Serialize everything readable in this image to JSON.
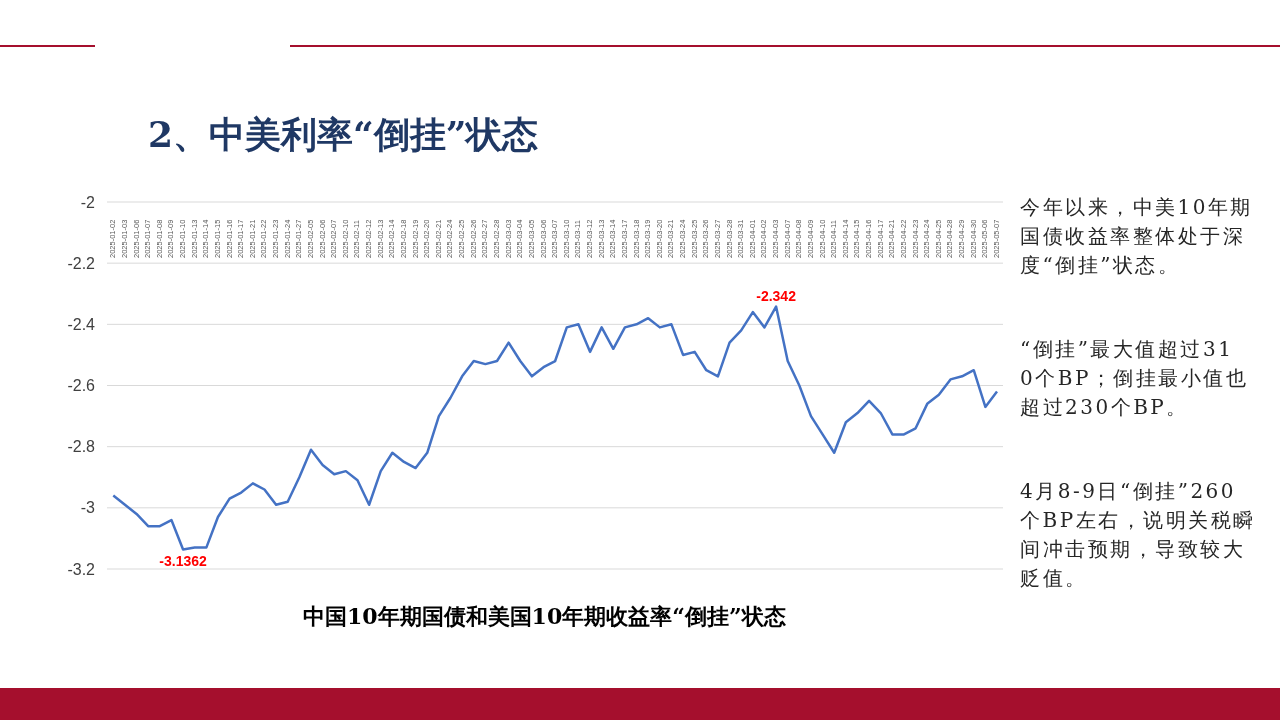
{
  "chart_data": {
    "type": "line",
    "title": "2、中美利率“倒挂”状态",
    "subtitle": "中国10年期国债和美国10年期收益率“倒挂”状态",
    "categories": [
      "2025-01-02",
      "2025-01-03",
      "2025-01-06",
      "2025-01-07",
      "2025-01-08",
      "2025-01-09",
      "2025-01-10",
      "2025-01-13",
      "2025-01-14",
      "2025-01-15",
      "2025-01-16",
      "2025-01-17",
      "2025-01-21",
      "2025-01-22",
      "2025-01-23",
      "2025-01-24",
      "2025-01-27",
      "2025-02-05",
      "2025-02-06",
      "2025-02-07",
      "2025-02-10",
      "2025-02-11",
      "2025-02-12",
      "2025-02-13",
      "2025-02-14",
      "2025-02-18",
      "2025-02-19",
      "2025-02-20",
      "2025-02-21",
      "2025-02-24",
      "2025-02-25",
      "2025-02-26",
      "2025-02-27",
      "2025-02-28",
      "2025-03-03",
      "2025-03-04",
      "2025-03-05",
      "2025-03-06",
      "2025-03-07",
      "2025-03-10",
      "2025-03-11",
      "2025-03-12",
      "2025-03-13",
      "2025-03-14",
      "2025-03-17",
      "2025-03-18",
      "2025-03-19",
      "2025-03-20",
      "2025-03-21",
      "2025-03-24",
      "2025-03-25",
      "2025-03-26",
      "2025-03-27",
      "2025-03-28",
      "2025-03-31",
      "2025-04-01",
      "2025-04-02",
      "2025-04-03",
      "2025-04-07",
      "2025-04-08",
      "2025-04-09",
      "2025-04-10",
      "2025-04-11",
      "2025-04-14",
      "2025-04-15",
      "2025-04-16",
      "2025-04-17",
      "2025-04-21",
      "2025-04-22",
      "2025-04-23",
      "2025-04-24",
      "2025-04-25",
      "2025-04-28",
      "2025-04-29",
      "2025-04-30",
      "2025-05-06",
      "2025-05-07"
    ],
    "series": [
      {
        "color": "#4472c4",
        "values": [
          -2.96,
          -2.99,
          -3.02,
          -3.06,
          -3.06,
          -3.04,
          -3.1362,
          -3.13,
          -3.13,
          -3.03,
          -2.97,
          -2.95,
          -2.92,
          -2.94,
          -2.99,
          -2.98,
          -2.9,
          -2.81,
          -2.86,
          -2.89,
          -2.88,
          -2.91,
          -2.99,
          -2.88,
          -2.82,
          -2.85,
          -2.87,
          -2.82,
          -2.7,
          -2.64,
          -2.57,
          -2.52,
          -2.53,
          -2.52,
          -2.46,
          -2.52,
          -2.57,
          -2.54,
          -2.52,
          -2.41,
          -2.4,
          -2.49,
          -2.41,
          -2.48,
          -2.41,
          -2.4,
          -2.38,
          -2.41,
          -2.4,
          -2.5,
          -2.49,
          -2.55,
          -2.57,
          -2.46,
          -2.42,
          -2.36,
          -2.41,
          -2.342,
          -2.52,
          -2.6,
          -2.7,
          -2.76,
          -2.82,
          -2.72,
          -2.69,
          -2.65,
          -2.69,
          -2.76,
          -2.76,
          -2.74,
          -2.66,
          -2.63,
          -2.58,
          -2.57,
          -2.55,
          -2.67,
          -2.62
        ]
      }
    ],
    "ylim": [
      -3.2,
      -2
    ],
    "yticks": [
      -2,
      -2.2,
      -2.4,
      -2.6,
      -2.8,
      -3,
      -3.2
    ],
    "grid": "y",
    "marker": "none",
    "line_style": "solid",
    "annotations": [
      {
        "text": "-3.1362",
        "x": "2025-01-10",
        "y": -3.1362
      },
      {
        "text": "-2.342",
        "x": "2025-04-03",
        "y": -2.342
      },
      "今年以来，中美10年期国债收益率整体处于深度“倒挂”状态。",
      "“倒挂”最大值超过310个BP；倒挂最小值也超过230个BP。",
      "4月8-9日“倒挂”260个BP左右，说明关税瞬间冲击预期，导致较大贬值。"
    ]
  }
}
